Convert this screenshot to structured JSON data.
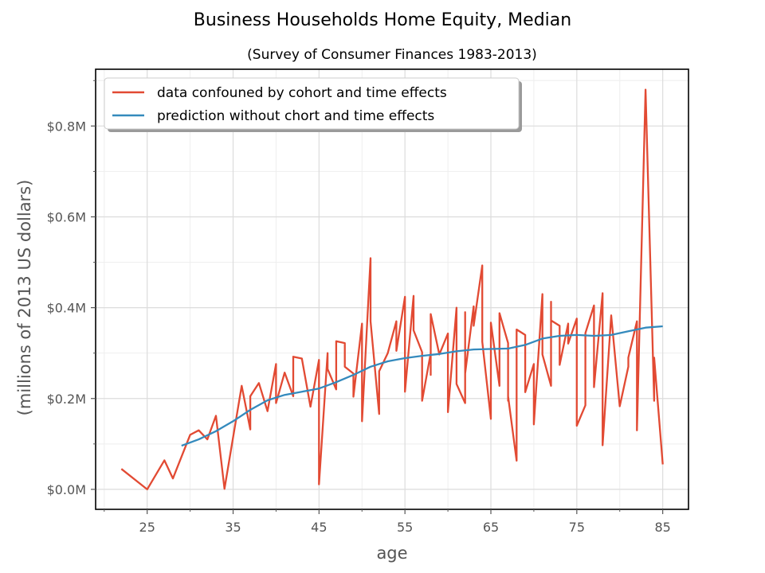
{
  "chart_data": {
    "type": "line",
    "title": "Business Households Home Equity, Median",
    "subtitle": "(Survey of Consumer Finances 1983-2013)",
    "xlabel": "age",
    "ylabel": "(millions of 2013 US dollars)",
    "xlim": [
      19,
      88
    ],
    "ylim": [
      -0.044,
      0.925
    ],
    "x_ticks": [
      25,
      35,
      45,
      55,
      65,
      75,
      85
    ],
    "x_tick_labels": [
      "25",
      "35",
      "45",
      "55",
      "65",
      "75",
      "85"
    ],
    "y_ticks": [
      0.0,
      0.2,
      0.4,
      0.6,
      0.8
    ],
    "y_tick_labels": [
      "$0.0M",
      "$0.2M",
      "$0.4M",
      "$0.6M",
      "$0.8M"
    ],
    "grid": true,
    "legend_position": "top-left",
    "series": [
      {
        "name": "data confouned by cohort and time effects",
        "color": "#e24a33",
        "points": [
          [
            22,
            0.045
          ],
          [
            25,
            0.0
          ],
          [
            27,
            0.064
          ],
          [
            28,
            0.024
          ],
          [
            30,
            0.12
          ],
          [
            31,
            0.13
          ],
          [
            32,
            0.11
          ],
          [
            33,
            0.162
          ],
          [
            34,
            0.001
          ],
          [
            36,
            0.228
          ],
          [
            37,
            0.132
          ],
          [
            37,
            0.205
          ],
          [
            38,
            0.234
          ],
          [
            39,
            0.172
          ],
          [
            40,
            0.276
          ],
          [
            40,
            0.19
          ],
          [
            41,
            0.257
          ],
          [
            42,
            0.205
          ],
          [
            42,
            0.292
          ],
          [
            43,
            0.288
          ],
          [
            44,
            0.182
          ],
          [
            45,
            0.285
          ],
          [
            45,
            0.011
          ],
          [
            46,
            0.3
          ],
          [
            46,
            0.265
          ],
          [
            47,
            0.22
          ],
          [
            47,
            0.326
          ],
          [
            48,
            0.322
          ],
          [
            48,
            0.27
          ],
          [
            49,
            0.255
          ],
          [
            49,
            0.204
          ],
          [
            50,
            0.365
          ],
          [
            50,
            0.15
          ],
          [
            51,
            0.509
          ],
          [
            51,
            0.37
          ],
          [
            52,
            0.166
          ],
          [
            52,
            0.26
          ],
          [
            53,
            0.3
          ],
          [
            54,
            0.37
          ],
          [
            54,
            0.305
          ],
          [
            55,
            0.424
          ],
          [
            55,
            0.215
          ],
          [
            56,
            0.426
          ],
          [
            56,
            0.35
          ],
          [
            57,
            0.302
          ],
          [
            57,
            0.195
          ],
          [
            58,
            0.3
          ],
          [
            58,
            0.252
          ],
          [
            58,
            0.386
          ],
          [
            59,
            0.297
          ],
          [
            60,
            0.343
          ],
          [
            60,
            0.17
          ],
          [
            61,
            0.4
          ],
          [
            61,
            0.232
          ],
          [
            62,
            0.19
          ],
          [
            62,
            0.39
          ],
          [
            62,
            0.255
          ],
          [
            63,
            0.403
          ],
          [
            63,
            0.36
          ],
          [
            64,
            0.493
          ],
          [
            64,
            0.325
          ],
          [
            65,
            0.155
          ],
          [
            65,
            0.367
          ],
          [
            66,
            0.228
          ],
          [
            66,
            0.388
          ],
          [
            67,
            0.322
          ],
          [
            67,
            0.195
          ],
          [
            67,
            0.205
          ],
          [
            68,
            0.063
          ],
          [
            68,
            0.352
          ],
          [
            69,
            0.34
          ],
          [
            69,
            0.214
          ],
          [
            70,
            0.276
          ],
          [
            70,
            0.143
          ],
          [
            71,
            0.43
          ],
          [
            71,
            0.297
          ],
          [
            72,
            0.228
          ],
          [
            72,
            0.413
          ],
          [
            72,
            0.372
          ],
          [
            73,
            0.36
          ],
          [
            73,
            0.274
          ],
          [
            74,
            0.365
          ],
          [
            74,
            0.321
          ],
          [
            75,
            0.376
          ],
          [
            75,
            0.14
          ],
          [
            76,
            0.185
          ],
          [
            76,
            0.344
          ],
          [
            77,
            0.405
          ],
          [
            77,
            0.225
          ],
          [
            78,
            0.432
          ],
          [
            78,
            0.097
          ],
          [
            79,
            0.383
          ],
          [
            80,
            0.183
          ],
          [
            81,
            0.27
          ],
          [
            81,
            0.29
          ],
          [
            82,
            0.37
          ],
          [
            82,
            0.13
          ],
          [
            83,
            0.88
          ],
          [
            84,
            0.195
          ],
          [
            84,
            0.29
          ],
          [
            85,
            0.055
          ]
        ]
      },
      {
        "name": "prediction without chort and time effects",
        "color": "#348abd",
        "points": [
          [
            29,
            0.096
          ],
          [
            31,
            0.11
          ],
          [
            33,
            0.128
          ],
          [
            35,
            0.15
          ],
          [
            37,
            0.175
          ],
          [
            39,
            0.196
          ],
          [
            41,
            0.208
          ],
          [
            43,
            0.215
          ],
          [
            45,
            0.222
          ],
          [
            47,
            0.236
          ],
          [
            49,
            0.252
          ],
          [
            51,
            0.27
          ],
          [
            53,
            0.282
          ],
          [
            55,
            0.289
          ],
          [
            57,
            0.294
          ],
          [
            59,
            0.298
          ],
          [
            61,
            0.304
          ],
          [
            63,
            0.308
          ],
          [
            65,
            0.309
          ],
          [
            67,
            0.31
          ],
          [
            69,
            0.318
          ],
          [
            71,
            0.332
          ],
          [
            73,
            0.338
          ],
          [
            75,
            0.34
          ],
          [
            77,
            0.338
          ],
          [
            79,
            0.34
          ],
          [
            81,
            0.348
          ],
          [
            83,
            0.356
          ],
          [
            85,
            0.359
          ]
        ]
      }
    ]
  }
}
